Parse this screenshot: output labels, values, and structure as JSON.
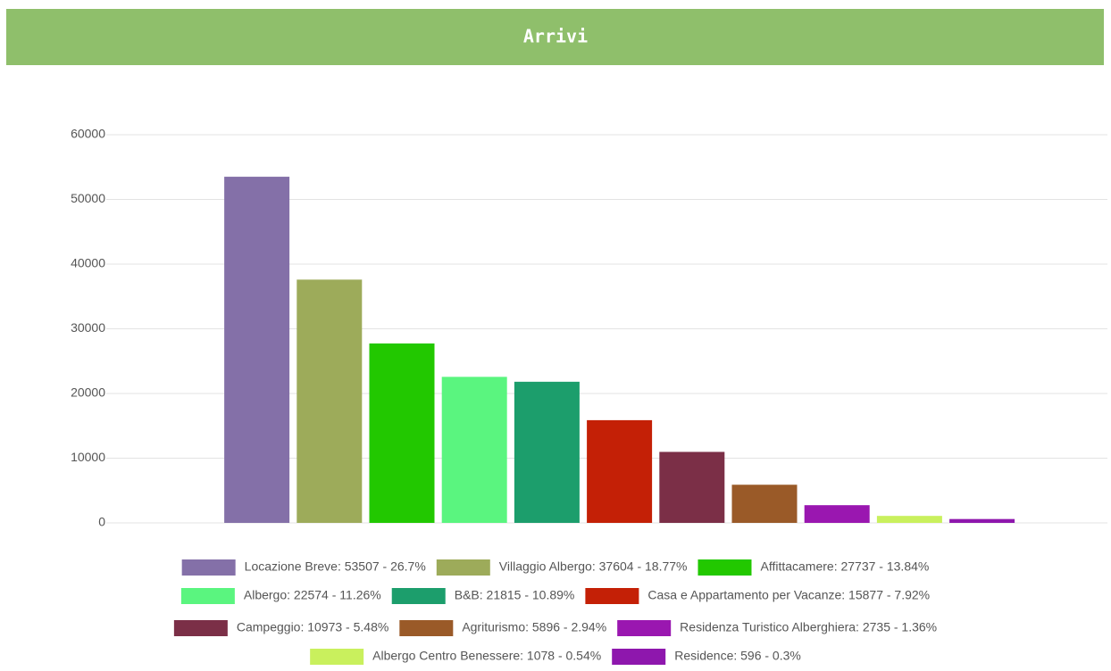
{
  "chart_data": {
    "type": "bar",
    "title": "Arrivi",
    "legend": [
      "Locazione Breve: 53507 - 26.7%",
      "Villaggio Albergo: 37604 - 18.77%",
      "Affittacamere: 27737 - 13.84%",
      "Albergo: 22574 - 11.26%",
      "B&B: 21815 - 10.89%",
      "Casa e Appartamento per Vacanze: 15877 - 7.92%",
      "Campeggio: 10973 - 5.48%",
      "Agriturismo: 5896 - 2.94%",
      "Residenza Turistico Alberghiera: 2735 - 1.36%",
      "Albergo Centro Benessere: 1078 - 0.54%",
      "Residence: 596 - 0.3%"
    ],
    "values": [
      53507,
      37604,
      27737,
      22574,
      21815,
      15877,
      10973,
      5896,
      2735,
      1078,
      596
    ],
    "colors": [
      "#8470a8",
      "#9dab5a",
      "#22c800",
      "#5af57f",
      "#1c9e6c",
      "#c42006",
      "#7b2f47",
      "#9a5a28",
      "#9a17b0",
      "#c9f05d",
      "#8e17ad"
    ],
    "ylim": [
      0,
      60000
    ],
    "yticks": [
      0,
      10000,
      20000,
      30000,
      40000,
      50000,
      60000
    ],
    "grid": true
  }
}
